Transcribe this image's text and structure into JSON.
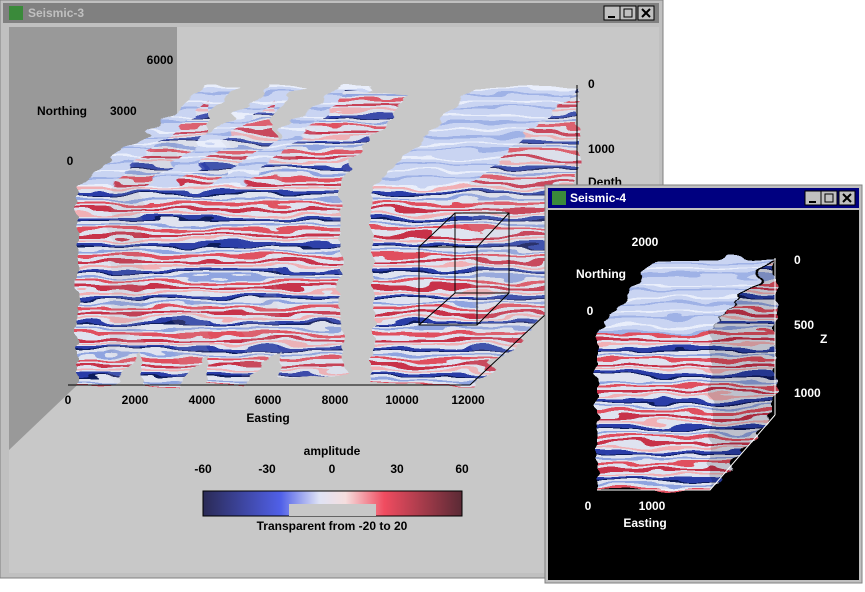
{
  "windows": [
    {
      "title": "Seismic-3",
      "northing": {
        "label": "Northing",
        "ticks": [
          0,
          3000,
          6000
        ]
      },
      "depth": {
        "label": "Depth",
        "ticks": [
          0,
          1000
        ]
      },
      "easting": {
        "label": "Easting",
        "ticks": [
          0,
          2000,
          4000,
          6000,
          8000,
          10000,
          12000
        ]
      },
      "colorbar": {
        "title": "amplitude",
        "ticks": [
          -60,
          -30,
          0,
          30,
          60
        ],
        "note": "Transparent from -20 to 20"
      }
    },
    {
      "title": "Seismic-4",
      "northing": {
        "label": "Northing",
        "ticks": [
          0,
          2000
        ]
      },
      "z": {
        "label": "Z",
        "ticks": [
          0,
          500,
          1000
        ]
      },
      "easting": {
        "label": "Easting",
        "ticks": [
          0,
          1000
        ]
      }
    }
  ]
}
